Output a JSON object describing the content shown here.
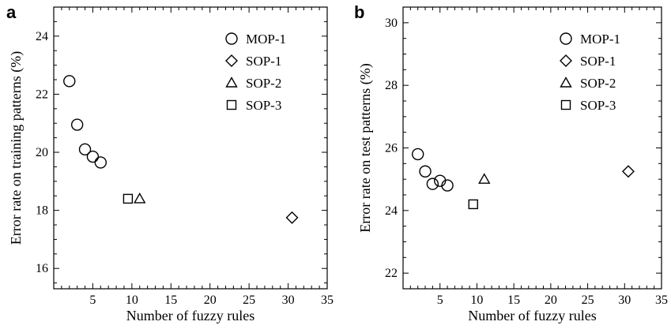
{
  "chart_data": [
    {
      "type": "scatter",
      "panel_label": "a",
      "xlabel": "Number of fuzzy rules",
      "ylabel": "Error rate on training patterns (%)",
      "xlim": [
        0,
        35
      ],
      "ylim": [
        15.3,
        25.0
      ],
      "xticks": [
        5,
        10,
        15,
        20,
        25,
        30,
        35
      ],
      "yticks": [
        16,
        18,
        20,
        22,
        24
      ],
      "legend_position": "top-right",
      "series": [
        {
          "name": "MOP-1",
          "marker": "circle",
          "points": [
            [
              2,
              22.45
            ],
            [
              3,
              20.95
            ],
            [
              4,
              20.1
            ],
            [
              5,
              19.85
            ],
            [
              6,
              19.65
            ]
          ]
        },
        {
          "name": "SOP-1",
          "marker": "diamond",
          "points": [
            [
              30.5,
              17.75
            ]
          ]
        },
        {
          "name": "SOP-2",
          "marker": "triangle",
          "points": [
            [
              11,
              18.4
            ]
          ]
        },
        {
          "name": "SOP-3",
          "marker": "square",
          "points": [
            [
              9.5,
              18.4
            ]
          ]
        }
      ]
    },
    {
      "type": "scatter",
      "panel_label": "b",
      "xlabel": "Number of fuzzy rules",
      "ylabel": "Error rate on test patterns (%)",
      "xlim": [
        0,
        35
      ],
      "ylim": [
        21.5,
        30.5
      ],
      "xticks": [
        5,
        10,
        15,
        20,
        25,
        30,
        35
      ],
      "yticks": [
        22,
        24,
        26,
        28,
        30
      ],
      "legend_position": "top-right",
      "series": [
        {
          "name": "MOP-1",
          "marker": "circle",
          "points": [
            [
              2,
              25.8
            ],
            [
              3,
              25.25
            ],
            [
              4,
              24.85
            ],
            [
              5,
              24.95
            ],
            [
              6,
              24.8
            ]
          ]
        },
        {
          "name": "SOP-1",
          "marker": "diamond",
          "points": [
            [
              30.5,
              25.25
            ]
          ]
        },
        {
          "name": "SOP-2",
          "marker": "triangle",
          "points": [
            [
              11,
              25.0
            ]
          ]
        },
        {
          "name": "SOP-3",
          "marker": "square",
          "points": [
            [
              9.5,
              24.2
            ]
          ]
        }
      ]
    }
  ]
}
